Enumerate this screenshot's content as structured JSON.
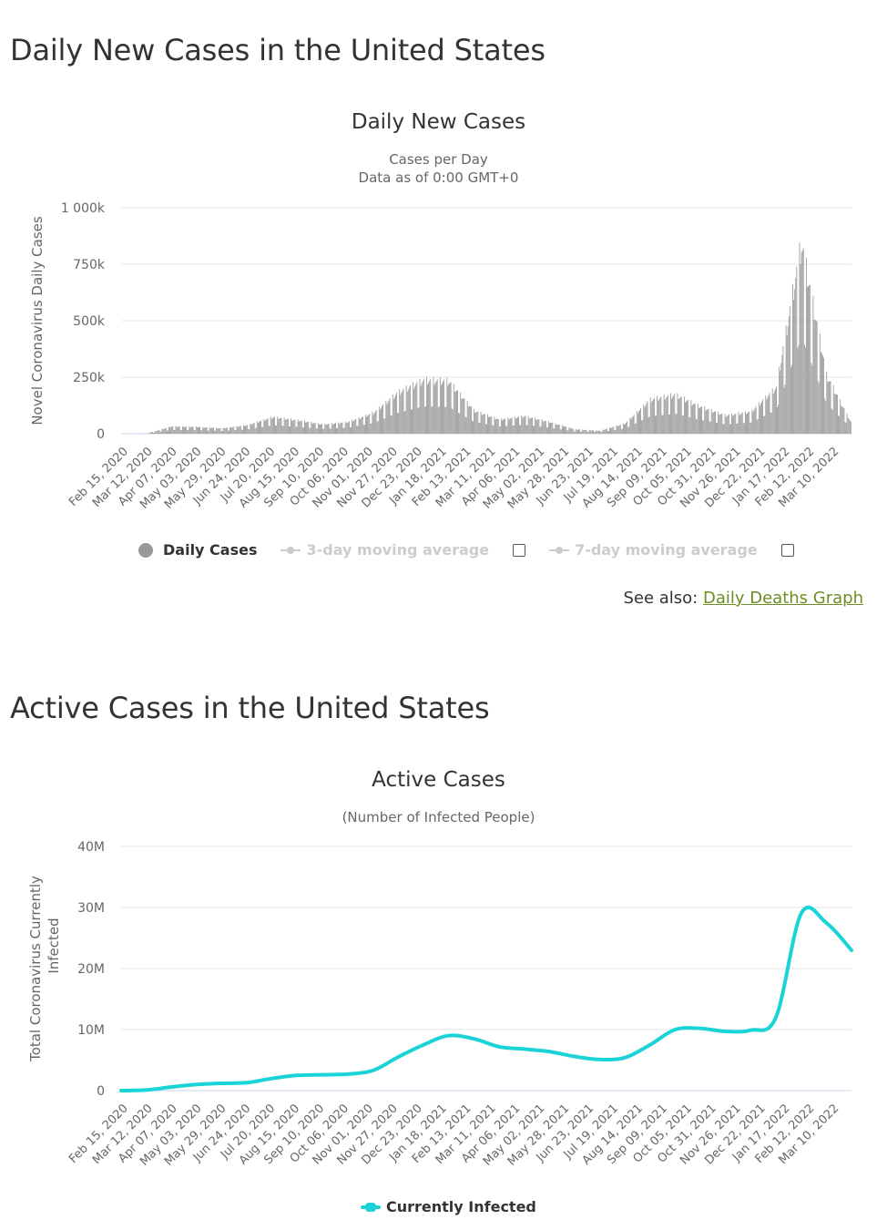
{
  "sections": {
    "daily_title": "Daily New Cases in the United States",
    "active_title": "Active Cases in the United States"
  },
  "daily_chart": {
    "title": "Daily New Cases",
    "subtitle_line1": "Cases per Day",
    "subtitle_line2": "Data as of 0:00 GMT+0",
    "legend": {
      "daily": "Daily Cases",
      "avg3": "3-day moving average",
      "avg7": "7-day moving average"
    },
    "colors": {
      "bar": "#999999",
      "legend_dot": "#999999",
      "legend_disabled": "#cccccc"
    }
  },
  "see_also": {
    "label": "See also:",
    "link_text": "Daily Deaths Graph"
  },
  "active_chart": {
    "title": "Active Cases",
    "subtitle": "(Number of Infected People)",
    "legend": {
      "infected": "Currently Infected"
    },
    "colors": {
      "line": "#1ad3d6"
    }
  },
  "chart_data": [
    {
      "type": "bar",
      "title": "Daily New Cases",
      "subtitle": "Cases per Day / Data as of 0:00 GMT+0",
      "xlabel": "",
      "ylabel": "Novel Coronavirus Daily Cases",
      "ylim": [
        0,
        1000000
      ],
      "y_ticks": [
        0,
        250000,
        500000,
        750000,
        1000000
      ],
      "y_tick_labels": [
        "0",
        "250k",
        "500k",
        "750k",
        "1 000k"
      ],
      "x_tick_labels": [
        "Feb 15, 2020",
        "Mar 12, 2020",
        "Apr 07, 2020",
        "May 03, 2020",
        "May 29, 2020",
        "Jun 24, 2020",
        "Jul 20, 2020",
        "Aug 15, 2020",
        "Sep 10, 2020",
        "Oct 06, 2020",
        "Nov 01, 2020",
        "Nov 27, 2020",
        "Dec 23, 2020",
        "Jan 18, 2021",
        "Feb 13, 2021",
        "Mar 11, 2021",
        "Apr 06, 2021",
        "May 02, 2021",
        "May 28, 2021",
        "Jun 23, 2021",
        "Jul 19, 2021",
        "Aug 14, 2021",
        "Sep 09, 2021",
        "Oct 05, 2021",
        "Oct 31, 2021",
        "Nov 26, 2021",
        "Dec 22, 2021",
        "Jan 17, 2022",
        "Feb 12, 2022",
        "Mar 10, 2022"
      ],
      "series": [
        {
          "name": "Daily Cases",
          "description": "Approximate daily-case trend, one value per label interval (26 days), read at each tick label",
          "values": [
            20,
            400,
            30000,
            28000,
            22000,
            35000,
            68000,
            55000,
            38000,
            48000,
            85000,
            170000,
            220000,
            215000,
            95000,
            58000,
            72000,
            48000,
            18000,
            12000,
            42000,
            140000,
            160000,
            110000,
            75000,
            90000,
            190000,
            780000,
            240000,
            40000
          ]
        }
      ]
    },
    {
      "type": "line",
      "title": "Active Cases",
      "subtitle": "(Number of Infected People)",
      "xlabel": "",
      "ylabel": "Total Coronavirus Currently Infected",
      "ylim": [
        0,
        40000000
      ],
      "y_ticks": [
        0,
        10000000,
        20000000,
        30000000,
        40000000
      ],
      "y_tick_labels": [
        "0",
        "10M",
        "20M",
        "30M",
        "40M"
      ],
      "x_tick_labels": [
        "Feb 15, 2020",
        "Mar 12, 2020",
        "Apr 07, 2020",
        "May 03, 2020",
        "May 29, 2020",
        "Jun 24, 2020",
        "Jul 20, 2020",
        "Aug 15, 2020",
        "Sep 10, 2020",
        "Oct 06, 2020",
        "Nov 01, 2020",
        "Nov 27, 2020",
        "Dec 23, 2020",
        "Jan 18, 2021",
        "Feb 13, 2021",
        "Mar 11, 2021",
        "Apr 06, 2021",
        "May 02, 2021",
        "May 28, 2021",
        "Jun 23, 2021",
        "Jul 19, 2021",
        "Aug 14, 2021",
        "Sep 09, 2021",
        "Oct 05, 2021",
        "Oct 31, 2021",
        "Nov 26, 2021",
        "Dec 22, 2021",
        "Jan 17, 2022",
        "Feb 12, 2022",
        "Mar 10, 2022"
      ],
      "series": [
        {
          "name": "Currently Infected",
          "values": [
            0,
            100000,
            600000,
            1000000,
            1200000,
            1300000,
            2000000,
            2500000,
            2600000,
            2700000,
            3300000,
            5500000,
            7500000,
            9000000,
            8500000,
            7200000,
            6800000,
            6400000,
            5600000,
            5100000,
            5400000,
            7500000,
            10000000,
            10200000,
            9700000,
            9900000,
            12000000,
            29000000,
            27500000,
            23000000
          ]
        }
      ]
    }
  ]
}
